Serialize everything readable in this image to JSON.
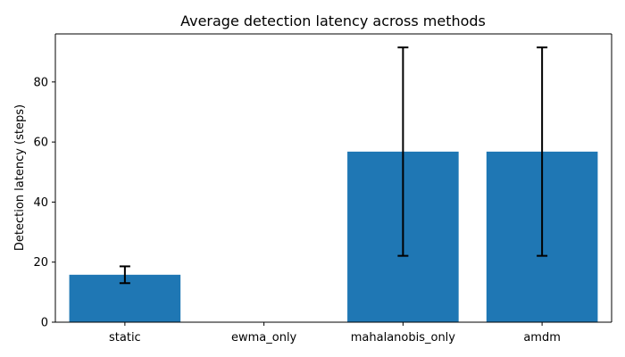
{
  "chart_data": {
    "type": "bar",
    "title": "Average detection latency across methods",
    "xlabel": "",
    "ylabel": "Detection latency (steps)",
    "categories": [
      "static",
      "ewma_only",
      "mahalanobis_only",
      "amdm"
    ],
    "values": [
      15.8,
      null,
      56.8,
      56.8
    ],
    "errors": [
      2.8,
      null,
      34.7,
      34.7
    ],
    "ylim": [
      0,
      96
    ],
    "yticks": [
      0,
      20,
      40,
      60,
      80
    ],
    "grid": false,
    "bar_color": "#1f77b4",
    "error_color": "#000000"
  }
}
